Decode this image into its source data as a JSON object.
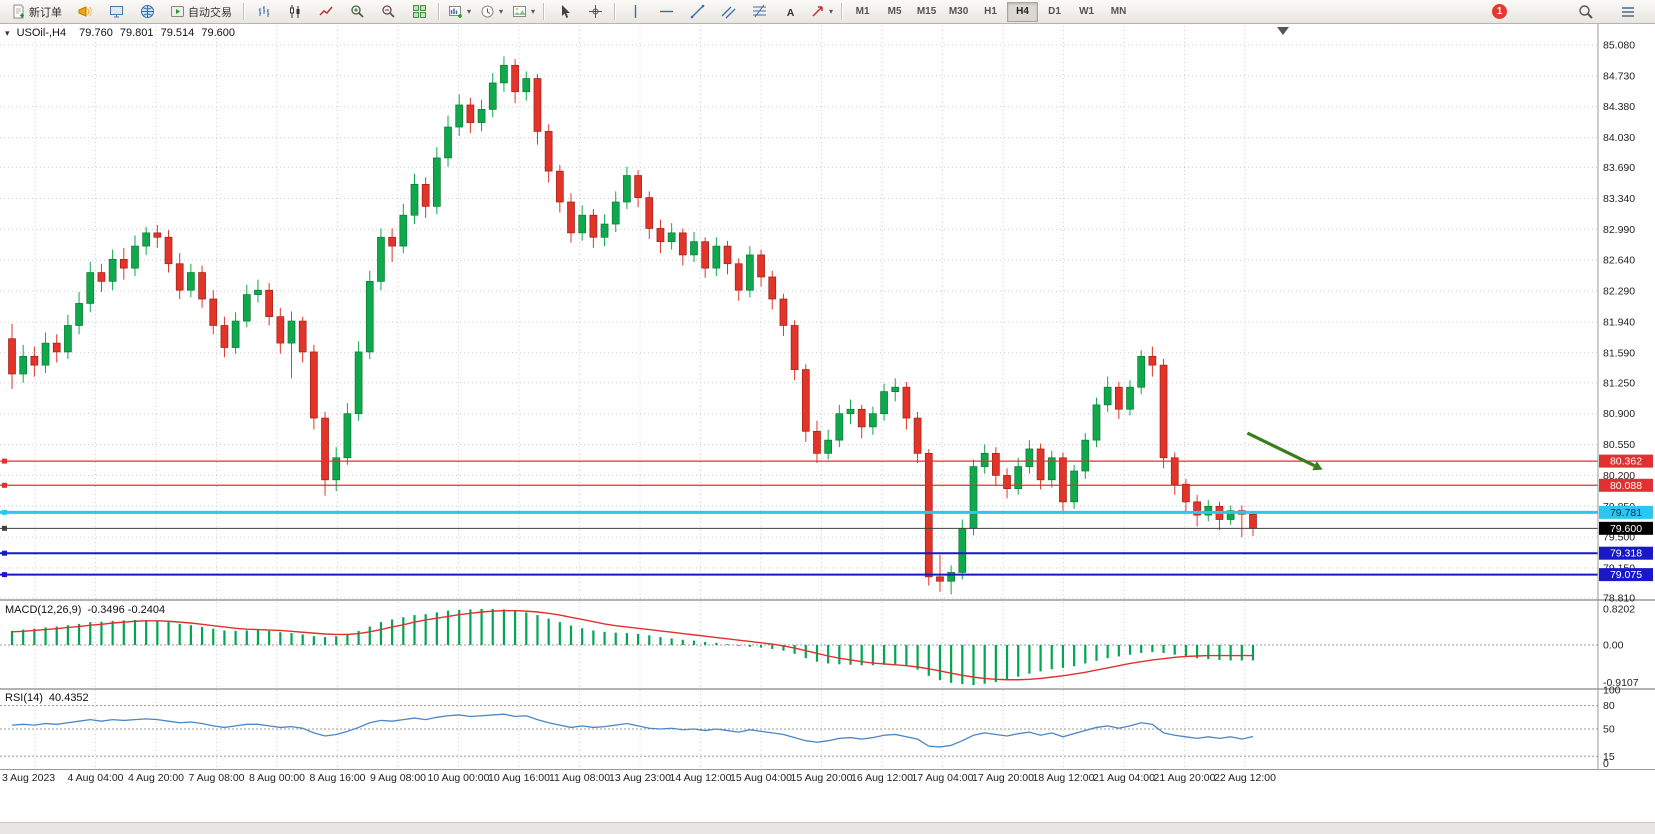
{
  "toolbar": {
    "new_order_label": "新订单",
    "auto_trading_label": "自动交易",
    "timeframes": [
      "M1",
      "M5",
      "M15",
      "M30",
      "H1",
      "H4",
      "D1",
      "W1",
      "MN"
    ],
    "active_timeframe": "H4",
    "notification_count": "1"
  },
  "chart_data": {
    "type": "candlestick",
    "symbol": "USOil-",
    "period": "H4",
    "title": "USOil-,H4",
    "ohlc_current": {
      "open": "79.760",
      "high": "79.801",
      "low": "79.514",
      "close": "79.600"
    },
    "ylim": [
      78.81,
      85.08
    ],
    "price_axis_labels": [
      "85.080",
      "84.730",
      "84.380",
      "84.030",
      "83.690",
      "83.340",
      "82.990",
      "82.640",
      "82.290",
      "81.940",
      "81.590",
      "81.250",
      "80.900",
      "80.550",
      "80.200",
      "79.850",
      "79.500",
      "79.150",
      "78.810"
    ],
    "time_axis_labels": [
      "3 Aug 2023",
      "4 Aug 04:00",
      "4 Aug 20:00",
      "7 Aug 08:00",
      "8 Aug 00:00",
      "8 Aug 16:00",
      "9 Aug 08:00",
      "10 Aug 00:00",
      "10 Aug 16:00",
      "11 Aug 08:00",
      "13 Aug 23:00",
      "14 Aug 12:00",
      "15 Aug 04:00",
      "15 Aug 20:00",
      "16 Aug 12:00",
      "17 Aug 04:00",
      "17 Aug 20:00",
      "18 Aug 12:00",
      "21 Aug 04:00",
      "21 Aug 20:00",
      "22 Aug 12:00"
    ],
    "candles": [
      [
        81.75,
        81.92,
        81.18,
        81.35
      ],
      [
        81.35,
        81.68,
        81.25,
        81.55
      ],
      [
        81.55,
        81.66,
        81.32,
        81.45
      ],
      [
        81.45,
        81.82,
        81.36,
        81.7
      ],
      [
        81.7,
        81.8,
        81.48,
        81.6
      ],
      [
        81.6,
        82.02,
        81.52,
        81.9
      ],
      [
        81.9,
        82.28,
        81.8,
        82.15
      ],
      [
        82.15,
        82.62,
        82.05,
        82.5
      ],
      [
        82.5,
        82.6,
        82.28,
        82.4
      ],
      [
        82.4,
        82.76,
        82.3,
        82.65
      ],
      [
        82.65,
        82.78,
        82.42,
        82.55
      ],
      [
        82.55,
        82.92,
        82.46,
        82.8
      ],
      [
        82.8,
        83.02,
        82.7,
        82.95
      ],
      [
        82.95,
        83.04,
        82.78,
        82.9
      ],
      [
        82.9,
        82.98,
        82.5,
        82.6
      ],
      [
        82.6,
        82.72,
        82.2,
        82.3
      ],
      [
        82.3,
        82.6,
        82.22,
        82.5
      ],
      [
        82.5,
        82.58,
        82.1,
        82.2
      ],
      [
        82.2,
        82.3,
        81.8,
        81.9
      ],
      [
        81.9,
        82.0,
        81.54,
        81.65
      ],
      [
        81.65,
        82.05,
        81.58,
        81.95
      ],
      [
        81.95,
        82.36,
        81.88,
        82.25
      ],
      [
        82.25,
        82.42,
        82.16,
        82.3
      ],
      [
        82.3,
        82.38,
        81.9,
        82.0
      ],
      [
        82.0,
        82.1,
        81.58,
        81.7
      ],
      [
        81.7,
        82.06,
        81.3,
        81.95
      ],
      [
        81.95,
        82.0,
        81.48,
        81.6
      ],
      [
        81.6,
        81.68,
        80.72,
        80.85
      ],
      [
        80.85,
        80.92,
        79.97,
        80.15
      ],
      [
        80.15,
        80.52,
        80.02,
        80.4
      ],
      [
        80.4,
        81.02,
        80.32,
        80.9
      ],
      [
        80.9,
        81.72,
        80.82,
        81.6
      ],
      [
        81.6,
        82.52,
        81.52,
        82.4
      ],
      [
        82.4,
        83.0,
        82.3,
        82.9
      ],
      [
        82.9,
        83.0,
        82.62,
        82.8
      ],
      [
        82.8,
        83.28,
        82.72,
        83.15
      ],
      [
        83.15,
        83.62,
        83.05,
        83.5
      ],
      [
        83.5,
        83.58,
        83.12,
        83.25
      ],
      [
        83.25,
        83.92,
        83.16,
        83.8
      ],
      [
        83.8,
        84.28,
        83.7,
        84.15
      ],
      [
        84.15,
        84.52,
        84.05,
        84.4
      ],
      [
        84.4,
        84.48,
        84.08,
        84.2
      ],
      [
        84.2,
        84.46,
        84.1,
        84.35
      ],
      [
        84.35,
        84.76,
        84.26,
        84.65
      ],
      [
        84.65,
        84.95,
        84.55,
        84.85
      ],
      [
        84.85,
        84.92,
        84.42,
        84.55
      ],
      [
        84.55,
        84.78,
        84.45,
        84.7
      ],
      [
        84.7,
        84.75,
        83.95,
        84.1
      ],
      [
        84.1,
        84.18,
        83.52,
        83.65
      ],
      [
        83.65,
        83.72,
        83.18,
        83.3
      ],
      [
        83.3,
        83.4,
        82.84,
        82.95
      ],
      [
        82.95,
        83.26,
        82.86,
        83.15
      ],
      [
        83.15,
        83.22,
        82.78,
        82.9
      ],
      [
        82.9,
        83.16,
        82.8,
        83.05
      ],
      [
        83.05,
        83.42,
        82.96,
        83.3
      ],
      [
        83.3,
        83.7,
        83.22,
        83.6
      ],
      [
        83.6,
        83.66,
        83.24,
        83.35
      ],
      [
        83.35,
        83.42,
        82.88,
        83.0
      ],
      [
        83.0,
        83.1,
        82.72,
        82.85
      ],
      [
        82.85,
        83.06,
        82.76,
        82.95
      ],
      [
        82.95,
        83.0,
        82.58,
        82.7
      ],
      [
        82.7,
        82.96,
        82.62,
        82.85
      ],
      [
        82.85,
        82.9,
        82.44,
        82.55
      ],
      [
        82.55,
        82.9,
        82.46,
        82.8
      ],
      [
        82.8,
        82.86,
        82.48,
        82.6
      ],
      [
        82.6,
        82.66,
        82.18,
        82.3
      ],
      [
        82.3,
        82.8,
        82.22,
        82.7
      ],
      [
        82.7,
        82.76,
        82.34,
        82.45
      ],
      [
        82.45,
        82.52,
        82.08,
        82.2
      ],
      [
        82.2,
        82.26,
        81.78,
        81.9
      ],
      [
        81.9,
        81.96,
        81.28,
        81.4
      ],
      [
        81.4,
        81.46,
        80.58,
        80.7
      ],
      [
        80.7,
        80.82,
        80.34,
        80.45
      ],
      [
        80.45,
        80.72,
        80.38,
        80.6
      ],
      [
        80.6,
        81.0,
        80.52,
        80.9
      ],
      [
        80.9,
        81.06,
        80.78,
        80.95
      ],
      [
        80.95,
        81.0,
        80.62,
        80.75
      ],
      [
        80.75,
        80.98,
        80.66,
        80.9
      ],
      [
        80.9,
        81.24,
        80.82,
        81.15
      ],
      [
        81.15,
        81.3,
        81.04,
        81.2
      ],
      [
        81.2,
        81.26,
        80.72,
        80.85
      ],
      [
        80.85,
        80.92,
        80.34,
        80.45
      ],
      [
        80.45,
        80.5,
        78.95,
        79.05
      ],
      [
        79.05,
        79.3,
        78.88,
        79.0
      ],
      [
        79.0,
        79.18,
        78.85,
        79.1
      ],
      [
        79.1,
        79.7,
        79.02,
        79.6
      ],
      [
        79.6,
        80.38,
        79.52,
        80.3
      ],
      [
        80.3,
        80.55,
        80.22,
        80.45
      ],
      [
        80.45,
        80.52,
        80.08,
        80.2
      ],
      [
        80.2,
        80.28,
        79.94,
        80.05
      ],
      [
        80.05,
        80.4,
        79.98,
        80.3
      ],
      [
        80.3,
        80.6,
        80.22,
        80.5
      ],
      [
        80.5,
        80.56,
        80.04,
        80.15
      ],
      [
        80.15,
        80.48,
        80.06,
        80.4
      ],
      [
        80.4,
        80.46,
        79.8,
        79.9
      ],
      [
        79.9,
        80.32,
        79.82,
        80.25
      ],
      [
        80.25,
        80.68,
        80.16,
        80.6
      ],
      [
        80.6,
        81.08,
        80.52,
        81.0
      ],
      [
        81.0,
        81.32,
        80.92,
        81.2
      ],
      [
        81.2,
        81.26,
        80.84,
        80.95
      ],
      [
        80.95,
        81.28,
        80.88,
        81.2
      ],
      [
        81.2,
        81.62,
        81.12,
        81.55
      ],
      [
        81.55,
        81.66,
        81.32,
        81.45
      ],
      [
        81.45,
        81.52,
        80.28,
        80.4
      ],
      [
        80.4,
        80.46,
        79.98,
        80.1
      ],
      [
        80.1,
        80.16,
        79.78,
        79.9
      ],
      [
        79.9,
        79.98,
        79.62,
        79.75
      ],
      [
        79.75,
        79.92,
        79.68,
        79.85
      ],
      [
        79.85,
        79.9,
        79.58,
        79.7
      ],
      [
        79.7,
        79.86,
        79.64,
        79.8
      ],
      [
        79.8,
        79.86,
        79.5,
        79.76
      ],
      [
        79.76,
        79.801,
        79.514,
        79.6
      ]
    ],
    "hlines": [
      {
        "price": 80.362,
        "label": "80.362",
        "color": "#e03030",
        "badge_bg": "#e03030",
        "badge_fg": "#ffffff",
        "width": 1.2
      },
      {
        "price": 80.088,
        "label": "80.088",
        "color": "#e03030",
        "badge_bg": "#e03030",
        "badge_fg": "#ffffff",
        "width": 1.2
      },
      {
        "price": 79.781,
        "label": "79.781",
        "color": "#2bc7f0",
        "badge_bg": "#2bc7f0",
        "badge_fg": "#003340",
        "width": 3
      },
      {
        "price": 79.6,
        "label": "79.600",
        "color": "#404040",
        "badge_bg": "#000000",
        "badge_fg": "#ffffff",
        "width": 1
      },
      {
        "price": 79.318,
        "label": "79.318",
        "color": "#1818c8",
        "badge_bg": "#1818c8",
        "badge_fg": "#ffffff",
        "width": 2
      },
      {
        "price": 79.075,
        "label": "79.075",
        "color": "#1818c8",
        "badge_bg": "#1818c8",
        "badge_fg": "#ffffff",
        "width": 2
      }
    ],
    "arrow_annotation": {
      "from_index": 110.5,
      "from_price": 80.68,
      "to_index": 116.5,
      "to_price": 80.31,
      "color": "#3a7d1e"
    },
    "macd": {
      "label": "MACD(12,26,9)",
      "values_text": "-0.3496 -0.2404",
      "axis_labels": [
        "0.8202",
        "0.00",
        "-0.9107"
      ],
      "max": 0.8202,
      "min": -0.9107,
      "histogram_color": "#00a651",
      "signal_color": "#e03030",
      "histogram": [
        0.32,
        0.35,
        0.37,
        0.4,
        0.42,
        0.45,
        0.48,
        0.52,
        0.53,
        0.55,
        0.56,
        0.57,
        0.57,
        0.55,
        0.52,
        0.48,
        0.45,
        0.41,
        0.37,
        0.33,
        0.32,
        0.33,
        0.34,
        0.32,
        0.29,
        0.27,
        0.24,
        0.2,
        0.18,
        0.2,
        0.25,
        0.32,
        0.42,
        0.52,
        0.58,
        0.63,
        0.68,
        0.7,
        0.74,
        0.78,
        0.8,
        0.81,
        0.82,
        0.82,
        0.81,
        0.78,
        0.74,
        0.68,
        0.6,
        0.52,
        0.44,
        0.38,
        0.33,
        0.3,
        0.28,
        0.27,
        0.25,
        0.22,
        0.18,
        0.15,
        0.12,
        0.1,
        0.07,
        0.05,
        0.02,
        -0.02,
        -0.04,
        -0.06,
        -0.09,
        -0.13,
        -0.2,
        -0.3,
        -0.38,
        -0.42,
        -0.44,
        -0.45,
        -0.46,
        -0.46,
        -0.45,
        -0.44,
        -0.48,
        -0.56,
        -0.7,
        -0.8,
        -0.86,
        -0.89,
        -0.91,
        -0.88,
        -0.84,
        -0.78,
        -0.72,
        -0.65,
        -0.6,
        -0.55,
        -0.52,
        -0.48,
        -0.42,
        -0.36,
        -0.3,
        -0.26,
        -0.22,
        -0.18,
        -0.16,
        -0.18,
        -0.22,
        -0.26,
        -0.3,
        -0.32,
        -0.34,
        -0.35,
        -0.35,
        -0.35
      ],
      "signal": [
        0.3,
        0.31,
        0.33,
        0.35,
        0.37,
        0.4,
        0.42,
        0.45,
        0.47,
        0.5,
        0.52,
        0.54,
        0.55,
        0.55,
        0.54,
        0.52,
        0.5,
        0.47,
        0.44,
        0.41,
        0.38,
        0.36,
        0.35,
        0.34,
        0.33,
        0.31,
        0.29,
        0.27,
        0.25,
        0.24,
        0.24,
        0.26,
        0.3,
        0.35,
        0.41,
        0.46,
        0.52,
        0.57,
        0.61,
        0.65,
        0.69,
        0.72,
        0.75,
        0.77,
        0.78,
        0.78,
        0.77,
        0.75,
        0.72,
        0.68,
        0.63,
        0.58,
        0.53,
        0.48,
        0.44,
        0.41,
        0.38,
        0.35,
        0.32,
        0.29,
        0.26,
        0.23,
        0.2,
        0.17,
        0.14,
        0.11,
        0.08,
        0.05,
        0.02,
        -0.02,
        -0.07,
        -0.13,
        -0.19,
        -0.25,
        -0.3,
        -0.34,
        -0.38,
        -0.41,
        -0.43,
        -0.45,
        -0.47,
        -0.5,
        -0.54,
        -0.59,
        -0.64,
        -0.69,
        -0.73,
        -0.76,
        -0.78,
        -0.79,
        -0.79,
        -0.78,
        -0.76,
        -0.73,
        -0.7,
        -0.66,
        -0.62,
        -0.57,
        -0.52,
        -0.47,
        -0.42,
        -0.38,
        -0.34,
        -0.31,
        -0.28,
        -0.26,
        -0.25,
        -0.24,
        -0.24,
        -0.24,
        -0.24,
        -0.24
      ]
    },
    "rsi": {
      "label": "RSI(14)",
      "value_text": "40.4352",
      "axis_labels": [
        "100",
        "80",
        "50",
        "15",
        "0"
      ],
      "levels": [
        80,
        50,
        15
      ],
      "line_color": "#4a86c8",
      "series": [
        55,
        56,
        55,
        57,
        56,
        58,
        60,
        62,
        60,
        62,
        61,
        62,
        63,
        62,
        60,
        58,
        59,
        57,
        54,
        52,
        54,
        56,
        56,
        54,
        52,
        53,
        51,
        45,
        41,
        43,
        47,
        52,
        58,
        61,
        60,
        62,
        64,
        62,
        65,
        67,
        68,
        66,
        67,
        68,
        69,
        66,
        67,
        62,
        58,
        55,
        52,
        54,
        52,
        53,
        55,
        57,
        54,
        51,
        50,
        51,
        49,
        50,
        48,
        50,
        48,
        46,
        49,
        47,
        45,
        43,
        39,
        35,
        33,
        35,
        38,
        39,
        37,
        39,
        42,
        43,
        40,
        37,
        28,
        27,
        29,
        35,
        42,
        45,
        43,
        41,
        44,
        46,
        42,
        45,
        40,
        44,
        48,
        52,
        54,
        51,
        54,
        58,
        56,
        45,
        42,
        40,
        38,
        40,
        38,
        40,
        37,
        40.44
      ]
    },
    "colors": {
      "bull": "#0fa84d",
      "bear": "#e23428",
      "grid": "#cccccc"
    }
  }
}
